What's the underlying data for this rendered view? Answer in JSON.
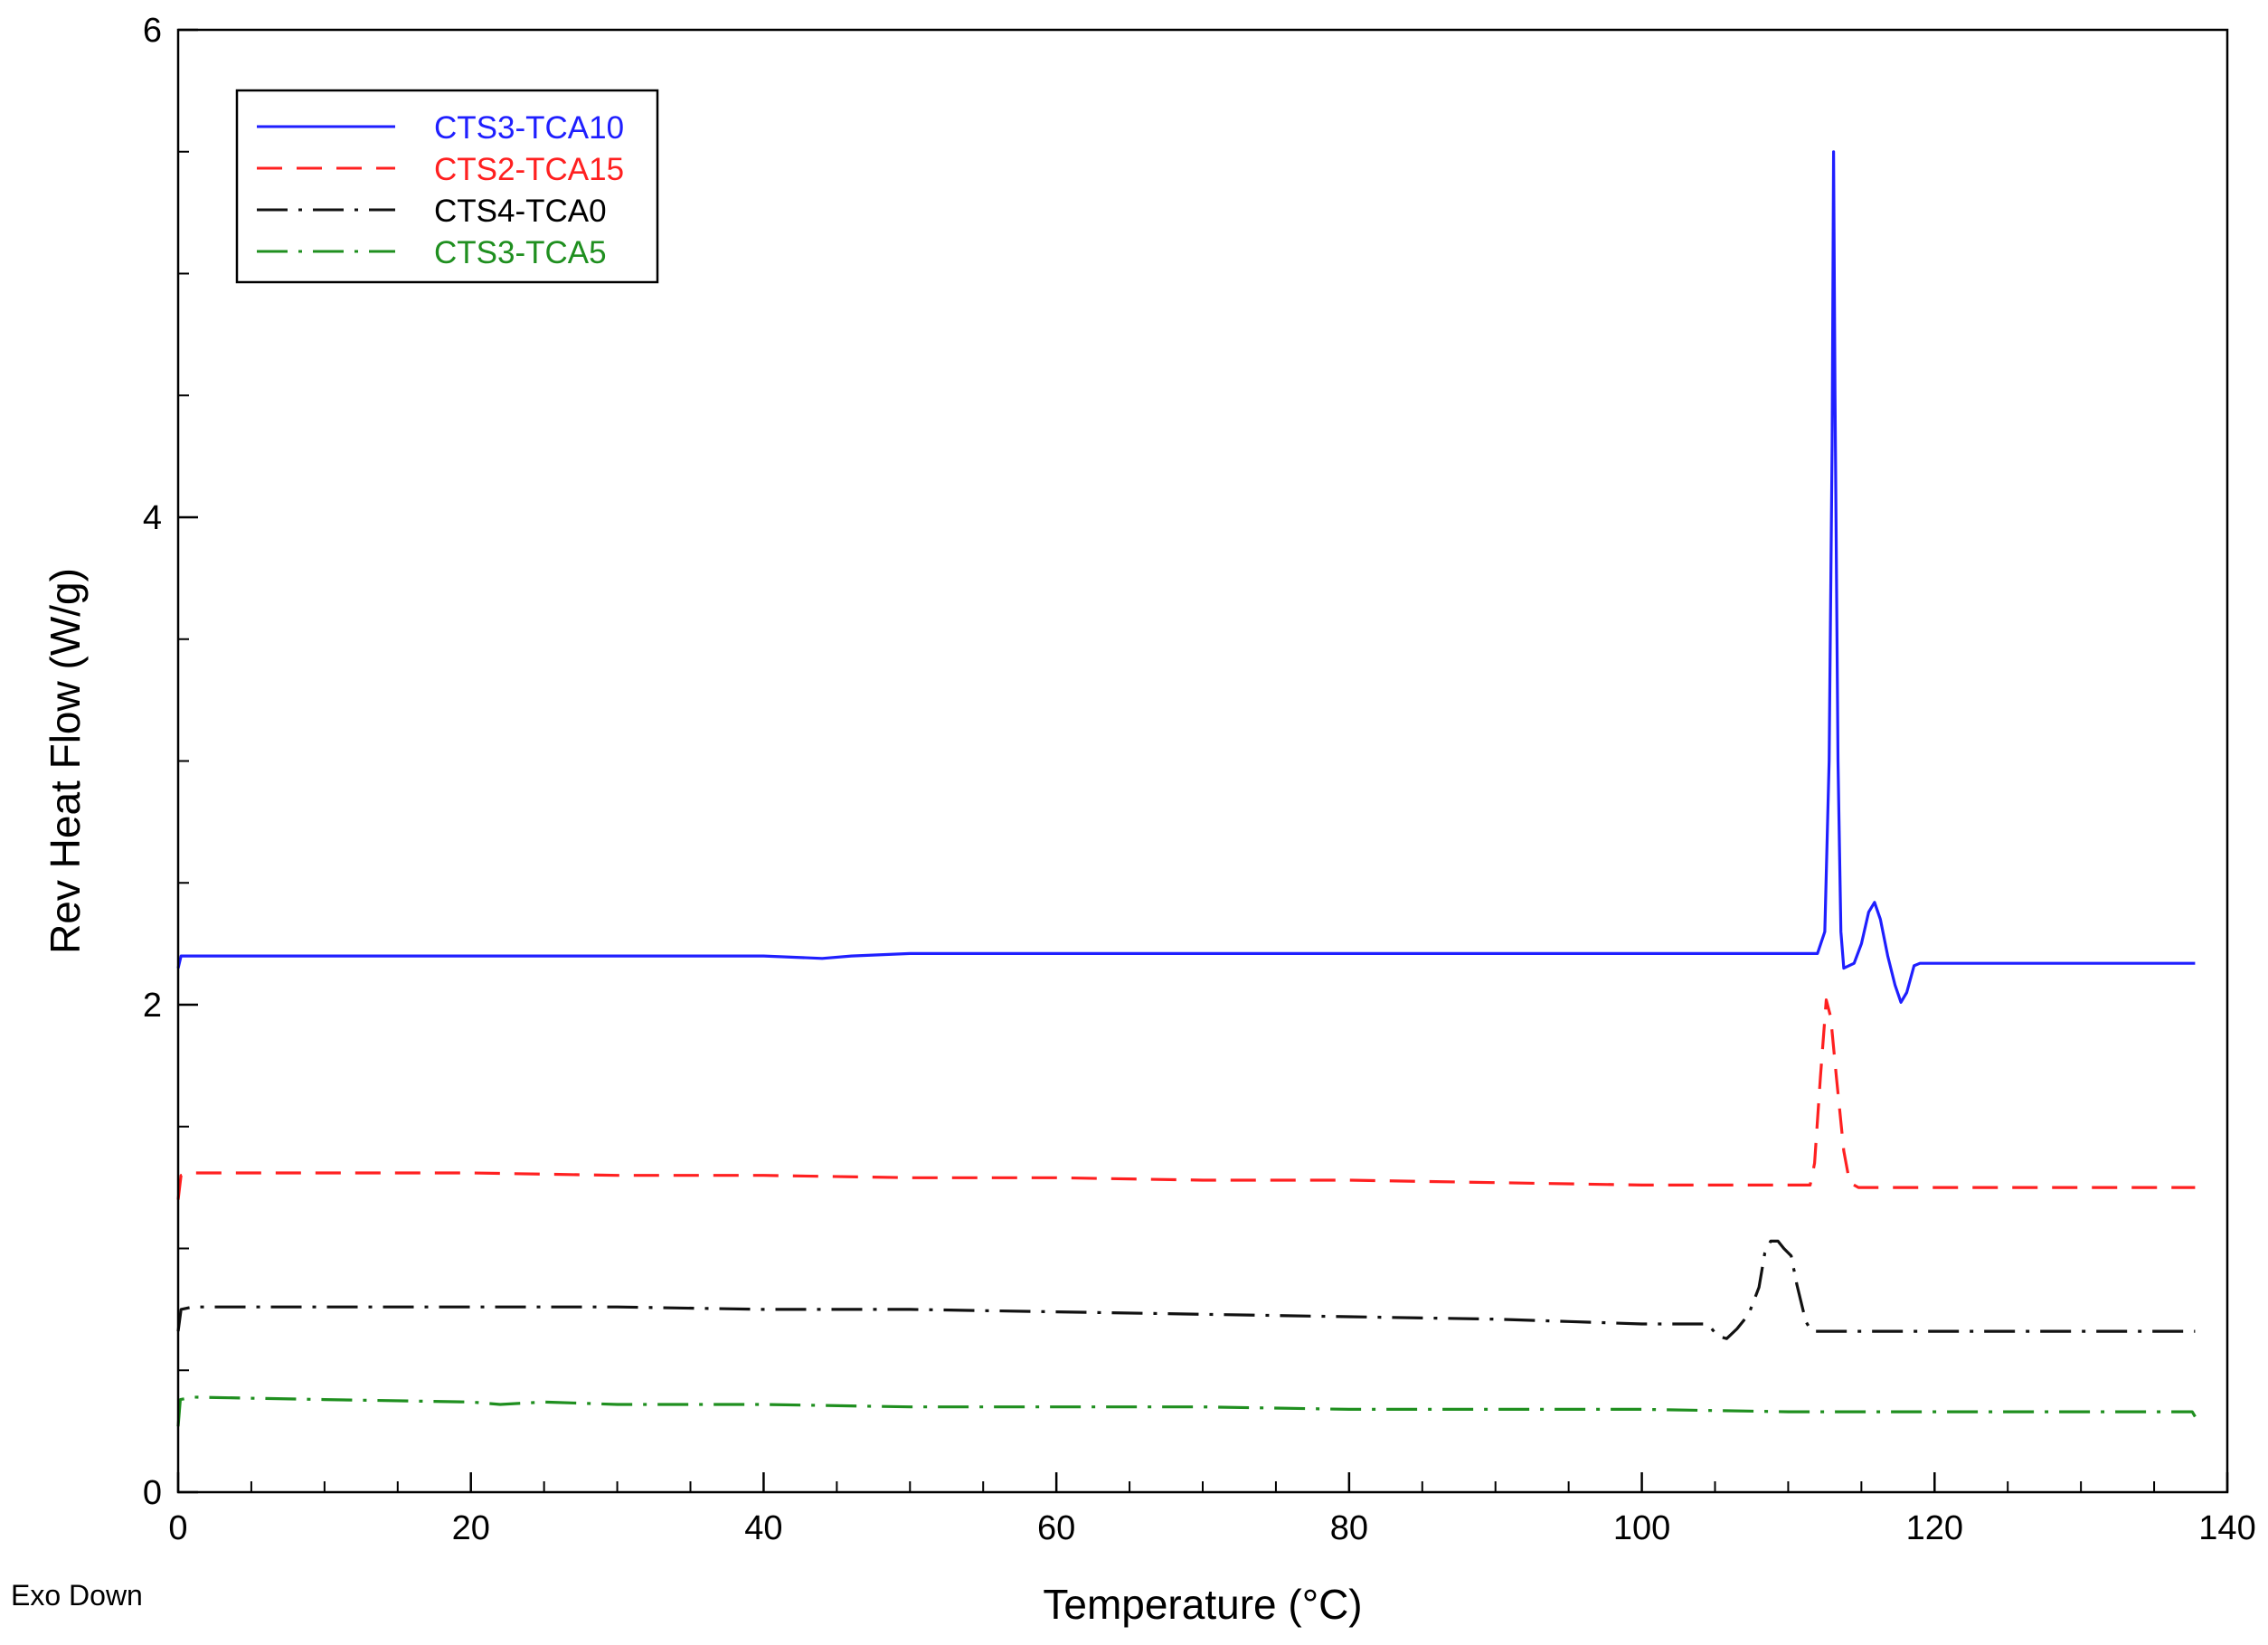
{
  "chart_data": {
    "type": "line",
    "xlabel": "Temperature (°C)",
    "ylabel": "Rev Heat Flow (W/g)",
    "xlim": [
      0,
      140
    ],
    "ylim": [
      0,
      6
    ],
    "x_ticks": [
      0,
      20,
      40,
      60,
      80,
      100,
      120,
      140
    ],
    "y_ticks": [
      0,
      2,
      4,
      6
    ],
    "grid": false,
    "legend_position": "top-left",
    "annotation": "Exo Down",
    "series": [
      {
        "name": "CTS3-TCA10",
        "color": "#1f1fff",
        "dash": "solid",
        "points": [
          [
            0.0,
            2.15
          ],
          [
            0.2,
            2.2
          ],
          [
            1,
            2.2
          ],
          [
            10,
            2.2
          ],
          [
            20,
            2.2
          ],
          [
            30,
            2.2
          ],
          [
            40,
            2.2
          ],
          [
            44,
            2.19
          ],
          [
            46,
            2.2
          ],
          [
            50,
            2.21
          ],
          [
            60,
            2.21
          ],
          [
            70,
            2.21
          ],
          [
            80,
            2.21
          ],
          [
            90,
            2.21
          ],
          [
            100,
            2.21
          ],
          [
            105,
            2.21
          ],
          [
            110,
            2.21
          ],
          [
            112,
            2.21
          ],
          [
            112.5,
            2.3
          ],
          [
            112.8,
            3.0
          ],
          [
            113.0,
            4.3
          ],
          [
            113.1,
            5.5
          ],
          [
            113.2,
            4.5
          ],
          [
            113.4,
            3.0
          ],
          [
            113.6,
            2.3
          ],
          [
            113.8,
            2.15
          ],
          [
            114.5,
            2.17
          ],
          [
            115.0,
            2.25
          ],
          [
            115.5,
            2.38
          ],
          [
            115.9,
            2.42
          ],
          [
            116.3,
            2.35
          ],
          [
            116.8,
            2.2
          ],
          [
            117.3,
            2.08
          ],
          [
            117.7,
            2.01
          ],
          [
            118.1,
            2.05
          ],
          [
            118.6,
            2.16
          ],
          [
            119,
            2.17
          ],
          [
            125,
            2.17
          ],
          [
            130,
            2.17
          ],
          [
            137.8,
            2.17
          ]
        ]
      },
      {
        "name": "CTS2-TCA15",
        "color": "#ff2020",
        "dash": "dashed",
        "points": [
          [
            0.0,
            1.2
          ],
          [
            0.2,
            1.3
          ],
          [
            1,
            1.31
          ],
          [
            10,
            1.31
          ],
          [
            20,
            1.31
          ],
          [
            30,
            1.3
          ],
          [
            40,
            1.3
          ],
          [
            50,
            1.29
          ],
          [
            60,
            1.29
          ],
          [
            70,
            1.28
          ],
          [
            80,
            1.28
          ],
          [
            90,
            1.27
          ],
          [
            100,
            1.26
          ],
          [
            110,
            1.26
          ],
          [
            111.5,
            1.26
          ],
          [
            111.8,
            1.35
          ],
          [
            112.2,
            1.7
          ],
          [
            112.6,
            2.02
          ],
          [
            112.9,
            1.95
          ],
          [
            113.3,
            1.7
          ],
          [
            113.8,
            1.4
          ],
          [
            114.2,
            1.27
          ],
          [
            114.8,
            1.25
          ],
          [
            120,
            1.25
          ],
          [
            130,
            1.25
          ],
          [
            137.8,
            1.25
          ]
        ]
      },
      {
        "name": "CTS4-TCA0",
        "color": "#111111",
        "dash": "dash-dot",
        "points": [
          [
            0.0,
            0.66
          ],
          [
            0.2,
            0.75
          ],
          [
            1,
            0.76
          ],
          [
            10,
            0.76
          ],
          [
            20,
            0.76
          ],
          [
            30,
            0.76
          ],
          [
            40,
            0.75
          ],
          [
            50,
            0.75
          ],
          [
            60,
            0.74
          ],
          [
            70,
            0.73
          ],
          [
            80,
            0.72
          ],
          [
            90,
            0.71
          ],
          [
            95,
            0.7
          ],
          [
            100,
            0.69
          ],
          [
            104.5,
            0.69
          ],
          [
            105.2,
            0.64
          ],
          [
            105.8,
            0.63
          ],
          [
            106.5,
            0.67
          ],
          [
            107.3,
            0.73
          ],
          [
            108,
            0.84
          ],
          [
            108.4,
            0.98
          ],
          [
            108.8,
            1.03
          ],
          [
            109.3,
            1.03
          ],
          [
            109.7,
            1.0
          ],
          [
            110.2,
            0.97
          ],
          [
            110.6,
            0.85
          ],
          [
            111.2,
            0.7
          ],
          [
            111.6,
            0.66
          ],
          [
            112,
            0.66
          ],
          [
            120,
            0.66
          ],
          [
            130,
            0.66
          ],
          [
            137.8,
            0.66
          ]
        ]
      },
      {
        "name": "CTS3-TCA5",
        "color": "#1f8f1f",
        "dash": "dash-dot",
        "points": [
          [
            0.0,
            0.27
          ],
          [
            0.15,
            0.38
          ],
          [
            1,
            0.39
          ],
          [
            10,
            0.38
          ],
          [
            20,
            0.37
          ],
          [
            22,
            0.36
          ],
          [
            25,
            0.37
          ],
          [
            30,
            0.36
          ],
          [
            40,
            0.36
          ],
          [
            50,
            0.35
          ],
          [
            60,
            0.35
          ],
          [
            70,
            0.35
          ],
          [
            80,
            0.34
          ],
          [
            90,
            0.34
          ],
          [
            100,
            0.34
          ],
          [
            110,
            0.33
          ],
          [
            120,
            0.33
          ],
          [
            130,
            0.33
          ],
          [
            137.6,
            0.33
          ],
          [
            137.8,
            0.31
          ]
        ]
      }
    ]
  }
}
